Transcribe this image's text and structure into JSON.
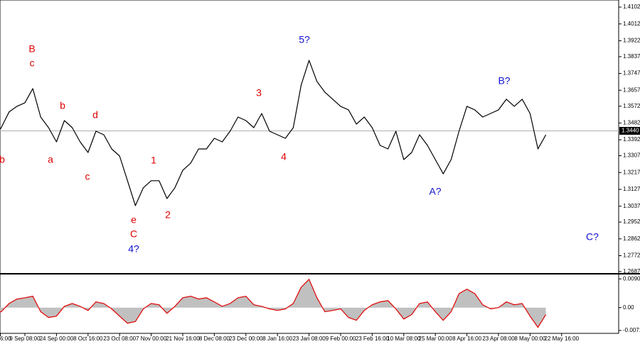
{
  "chart_data": [
    {
      "type": "line",
      "color": "#000000",
      "categories": [
        "6:00",
        null,
        null,
        null,
        "9 Sep 08:00",
        null,
        null,
        null,
        "24 Sep 00:00",
        null,
        null,
        null,
        "8 Oct 16:00",
        null,
        null,
        null,
        "23 Oct 08:00",
        null,
        null,
        null,
        "7 Nov 00:00",
        null,
        null,
        null,
        "21 Nov 16:00",
        null,
        null,
        null,
        "8 Dec 08:00",
        null,
        null,
        null,
        "23 Dec 00:00",
        null,
        null,
        null,
        "8 Jan 16:00",
        null,
        null,
        null,
        "23 Jan 08:00",
        null,
        null,
        null,
        "9 Feb 00:00",
        null,
        null,
        null,
        "23 Feb 16:00",
        null,
        null,
        null,
        "10 Mar 08:00",
        null,
        null,
        null,
        "25 Mar 00:00",
        null,
        null,
        null,
        "8 Apr 16:00",
        null,
        null,
        null,
        "23 Apr 08:00",
        null,
        null,
        null,
        "8 May 00:00",
        null,
        null,
        null,
        "22 May 16:00"
      ],
      "values": [
        1.34,
        1.3457,
        1.3541,
        1.3571,
        1.359,
        1.3666,
        1.3514,
        1.3457,
        1.3381,
        1.3495,
        1.3457,
        1.3381,
        1.3324,
        1.3438,
        1.3419,
        1.3343,
        1.3305,
        1.3173,
        1.304,
        1.3135,
        1.3173,
        1.3173,
        1.3078,
        1.3135,
        1.3229,
        1.3267,
        1.3343,
        1.3343,
        1.34,
        1.3381,
        1.3438,
        1.3514,
        1.3495,
        1.3457,
        1.3533,
        1.3438,
        1.3419,
        1.34,
        1.3457,
        1.3685,
        1.3817,
        1.3704,
        1.3647,
        1.3609,
        1.3571,
        1.3552,
        1.3476,
        1.3514,
        1.3457,
        1.3362,
        1.3343,
        1.3438,
        1.3286,
        1.3324,
        1.3419,
        1.3362,
        1.3286,
        1.321,
        1.3286,
        1.3438,
        1.3571,
        1.3552,
        1.3514,
        1.3533,
        1.3552,
        1.3609,
        1.3571,
        1.3609,
        1.3533,
        1.3343,
        1.3419,
        null,
        null
      ],
      "ylim": [
        1.2679,
        1.414
      ],
      "yticks": [
        1.4102,
        1.4012,
        1.3922,
        1.3837,
        1.3747,
        1.3657,
        1.3572,
        1.3482,
        1.3392,
        1.3307,
        1.3217,
        1.3127,
        1.3037,
        1.2952,
        1.2862,
        1.2772,
        1.2687
      ],
      "current_price": {
        "value": 1.344,
        "label": "1.3440"
      },
      "annotations": [
        {
          "text": "b",
          "color": "#e00000"
        },
        {
          "text": "B",
          "color": "#e00000"
        },
        {
          "text": "c",
          "color": "#e00000"
        },
        {
          "text": "a",
          "color": "#e00000"
        },
        {
          "text": "b",
          "color": "#e00000"
        },
        {
          "text": "c",
          "color": "#e00000"
        },
        {
          "text": "d",
          "color": "#e00000"
        },
        {
          "text": "e",
          "color": "#e00000"
        },
        {
          "text": "C",
          "color": "#e00000"
        },
        {
          "text": "4?",
          "color": "#1010d0"
        },
        {
          "text": "1",
          "color": "#e00000"
        },
        {
          "text": "2",
          "color": "#e00000"
        },
        {
          "text": "3",
          "color": "#e00000"
        },
        {
          "text": "4",
          "color": "#e00000"
        },
        {
          "text": "5?",
          "color": "#1010d0"
        },
        {
          "text": "A?",
          "color": "#1010d0"
        },
        {
          "text": "B?",
          "color": "#1010d0"
        },
        {
          "text": "C?",
          "color": "#1010d0"
        }
      ]
    },
    {
      "type": "area",
      "color": "#c0c0c0",
      "line_color": "#e00000",
      "values": [
        -0.0013,
        -0.0013,
        0.0013,
        0.0027,
        0.0031,
        0.0036,
        -0.0013,
        -0.0031,
        -0.0027,
        0.0004,
        0.0013,
        0.0004,
        -0.0009,
        0.0018,
        0.0013,
        -0.0004,
        -0.0027,
        -0.0049,
        -0.0044,
        -0.0004,
        0.0013,
        0.0009,
        -0.0018,
        0.0004,
        0.0031,
        0.0036,
        0.0027,
        0.0031,
        0.0018,
        0.0004,
        0.0013,
        0.0031,
        0.0036,
        0.0009,
        0.0004,
        -0.0004,
        -0.0009,
        -0.0004,
        0.0013,
        0.0064,
        0.0089,
        0.0031,
        -0.0013,
        -0.0009,
        -0.0004,
        -0.0031,
        -0.004,
        -0.0009,
        0.0009,
        0.0018,
        0.0022,
        -0.0004,
        -0.0036,
        -0.0022,
        0.0013,
        0.0018,
        -0.0013,
        -0.004,
        -0.0013,
        0.0044,
        0.0058,
        0.0044,
        0.0009,
        -0.0004,
        0,
        0.0018,
        0.0009,
        0.0013,
        -0.0027,
        -0.0062,
        -0.0022,
        null,
        null
      ],
      "ylim": [
        -0.0081,
        0.0102
      ],
      "yticks": [
        0.00904,
        {
          "value": 0,
          "label": "0.00"
        },
        -0.00719
      ]
    }
  ]
}
